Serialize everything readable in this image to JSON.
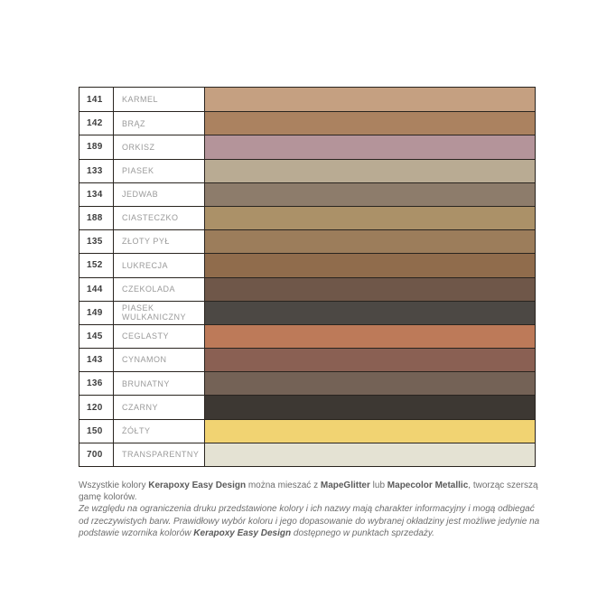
{
  "page": {
    "background_color": "#ffffff",
    "table_border_color": "#29241f"
  },
  "table": {
    "columns": [
      "code",
      "name",
      "swatch"
    ],
    "rows": [
      {
        "code": "141",
        "name": "KARMEL",
        "color": "#c5a081"
      },
      {
        "code": "142",
        "name": "BRĄZ",
        "color": "#ab8260"
      },
      {
        "code": "189",
        "name": "ORKISZ",
        "color": "#b4949a"
      },
      {
        "code": "133",
        "name": "PIASEK",
        "color": "#b9ab93"
      },
      {
        "code": "134",
        "name": "JEDWAB",
        "color": "#8d7c6b"
      },
      {
        "code": "188",
        "name": "CIASTECZKO",
        "color": "#ab9168"
      },
      {
        "code": "135",
        "name": "ZŁOTY PYŁ",
        "color": "#9c7d5b"
      },
      {
        "code": "152",
        "name": "LUKRECJA",
        "color": "#906c4c"
      },
      {
        "code": "144",
        "name": "CZEKOLADA",
        "color": "#6f5749"
      },
      {
        "code": "149",
        "name": "PIASEK WULKANICZNY",
        "color": "#4c4844"
      },
      {
        "code": "145",
        "name": "CEGLASTY",
        "color": "#bd7a59"
      },
      {
        "code": "143",
        "name": "CYNAMON",
        "color": "#8a6053"
      },
      {
        "code": "136",
        "name": "BRUNATNY",
        "color": "#746256"
      },
      {
        "code": "120",
        "name": "CZARNY",
        "color": "#3d3833"
      },
      {
        "code": "150",
        "name": "ŻÓŁTY",
        "color": "#f1d372"
      },
      {
        "code": "700",
        "name": "TRANSPARENTNY",
        "color": "#e4e2d3"
      }
    ]
  },
  "footer": {
    "text_color": "#6e6e6e",
    "para1_segments": [
      {
        "text": "Wszystkie kolory ",
        "bold": false
      },
      {
        "text": "Kerapoxy Easy Design",
        "bold": true
      },
      {
        "text": " można mieszać z ",
        "bold": false
      },
      {
        "text": "MapeGlitter",
        "bold": true
      },
      {
        "text": " lub ",
        "bold": false
      },
      {
        "text": "Mapecolor Metallic",
        "bold": true
      },
      {
        "text": ", tworząc szerszą gamę kolorów.",
        "bold": false
      }
    ],
    "para2_segments": [
      {
        "text": "Ze względu na ograniczenia druku przedstawione kolory i ich nazwy mają charakter informacyjny i mogą odbiegać od rzeczywistych barw. Prawidłowy wybór koloru i jego dopasowanie do wybranej okładziny jest możliwe jedynie na podstawie wzornika kolorów ",
        "bold": false
      },
      {
        "text": "Kerapoxy Easy Design",
        "bold": true
      },
      {
        "text": " dostępnego w punktach sprzedaży.",
        "bold": false
      }
    ]
  }
}
